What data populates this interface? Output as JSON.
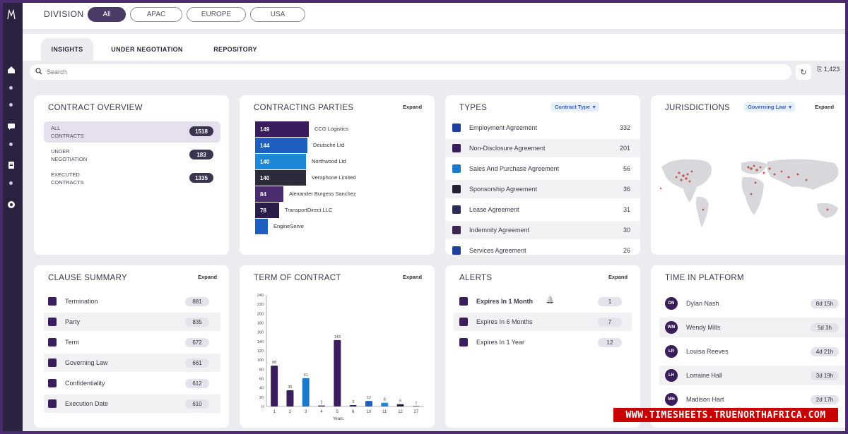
{
  "division": {
    "label": "DIVISION",
    "options": [
      "All",
      "APAC",
      "EUROPE",
      "USA"
    ],
    "selected": "All"
  },
  "tabs": [
    "INSIGHTS",
    "UNDER NEGOTIATION",
    "REPOSITORY"
  ],
  "active_tab": "INSIGHTS",
  "search": {
    "placeholder": "Search"
  },
  "export_label": "1,423",
  "contract_overview": {
    "title": "CONTRACT OVERVIEW",
    "rows": [
      {
        "label_line1": "ALL",
        "label_line2": "CONTRACTS",
        "count": "1518"
      },
      {
        "label_line1": "UNDER",
        "label_line2": "NEGOTIATION",
        "count": "183"
      },
      {
        "label_line1": "EXECUTED",
        "label_line2": "CONTRACTS",
        "count": "1335"
      }
    ]
  },
  "contracting_parties": {
    "title": "CONTRACTING PARTIES",
    "expand": "Expand",
    "parties": [
      {
        "name": "CCG Logistics",
        "value": "149",
        "color": "#3a1d5c"
      },
      {
        "name": "Deutsche Ltd",
        "value": "144",
        "color": "#1f5fc0"
      },
      {
        "name": "Northwood Ltd",
        "value": "140",
        "color": "#1e88d8"
      },
      {
        "name": "Verophone Limited",
        "value": "140",
        "color": "#2b2b3b"
      },
      {
        "name": "Alexander Burgess Sanchez",
        "value": "84",
        "color": "#4a2b6e"
      },
      {
        "name": "TransportDirect LLC",
        "value": "78",
        "color": "#2b1d4a"
      },
      {
        "name": "EngineServe",
        "value": "",
        "color": "#1f5fc0"
      }
    ]
  },
  "types": {
    "title": "TYPES",
    "filter": "Contract Type",
    "rows": [
      {
        "label": "Employment Agreement",
        "value": "332",
        "color": "#1f3f9c"
      },
      {
        "name_key": "",
        "label": "Non-Disclosure Agreement",
        "value": "201",
        "color": "#3a1d5c"
      },
      {
        "label": "Sales And Purchase Agreement",
        "value": "56",
        "color": "#1e78c8"
      },
      {
        "label": "Sponsorship Agreement",
        "value": "36",
        "color": "#222233"
      },
      {
        "label": "Lease Agreement",
        "value": "31",
        "color": "#2b2b5a"
      },
      {
        "label": "Indemnity Agreement",
        "value": "30",
        "color": "#3a2450"
      },
      {
        "label": "Services Agreement",
        "value": "26",
        "color": "#1f3f9c"
      }
    ]
  },
  "jurisdictions": {
    "title": "JURISDICTIONS",
    "filter": "Governing Law",
    "expand": "Expand"
  },
  "clause_summary": {
    "title": "CLAUSE SUMMARY",
    "expand": "Expand",
    "rows": [
      {
        "label": "Termination",
        "value": "881"
      },
      {
        "label": "Party",
        "value": "835"
      },
      {
        "label": "Term",
        "value": "672"
      },
      {
        "label": "Governing Law",
        "value": "661"
      },
      {
        "label": "Confidentiality",
        "value": "612"
      },
      {
        "label": "Execution Date",
        "value": "610"
      }
    ]
  },
  "term_of_contract": {
    "title": "TERM OF CONTRACT",
    "expand": "Expand",
    "chart_data": {
      "type": "bar",
      "categories": [
        "1",
        "2",
        "3",
        "4",
        "5",
        "6",
        "10",
        "11",
        "12",
        "27"
      ],
      "values": [
        88,
        35,
        61,
        2,
        143,
        3,
        12,
        8,
        5,
        1
      ],
      "colors": [
        "#3a1d5c",
        "#3a1d5c",
        "#1e78c8",
        "#3a1d5c",
        "#3a1d5c",
        "#3a1d5c",
        "#1f5fc0",
        "#1e88d8",
        "#222233",
        "#3a1d5c"
      ],
      "xlabel": "Years",
      "ylabel": "",
      "ylim": [
        0,
        240
      ],
      "yticks": [
        "0",
        "20",
        "40",
        "60",
        "80",
        "100",
        "120",
        "140",
        "160",
        "180",
        "200",
        "220",
        "240"
      ]
    }
  },
  "alerts": {
    "title": "ALERTS",
    "expand": "Expand",
    "rows": [
      {
        "label": "Expires In 1 Month",
        "value": "1"
      },
      {
        "label": "Expires In 6 Months",
        "value": "7"
      },
      {
        "label": "Expires In 1 Year",
        "value": "12"
      }
    ]
  },
  "time_in_platform": {
    "title": "TIME IN PLATFORM",
    "rows": [
      {
        "initials": "DN",
        "name": "Dylan Nash",
        "value": "8d 15h"
      },
      {
        "initials": "WM",
        "name": "Wendy Mills",
        "value": "5d 3h"
      },
      {
        "initials": "LR",
        "name": "Louisa Reeves",
        "value": "4d 21h"
      },
      {
        "initials": "LH",
        "name": "Lorraine Hall",
        "value": "3d 19h"
      },
      {
        "initials": "MH",
        "name": "Madison Hart",
        "value": "2d 17h"
      }
    ]
  },
  "watermark": "WWW.TIMESHEETS.TRUENORTHAFRICA.COM"
}
